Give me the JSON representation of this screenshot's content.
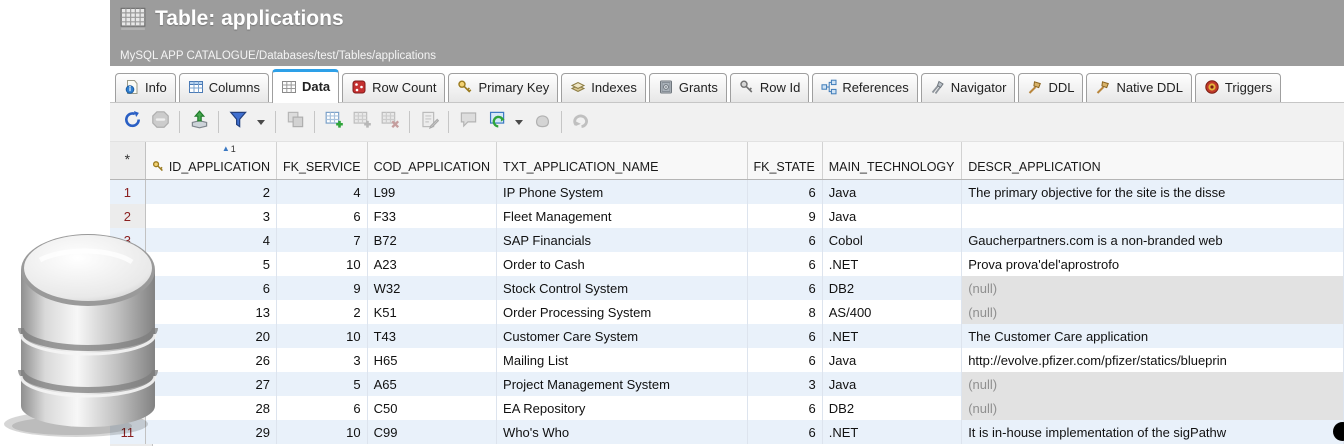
{
  "window": {
    "icon": "table-grid-icon",
    "title": "Table: applications",
    "breadcrumb": "MySQL APP CATALOGUE/Databases/test/Tables/applications"
  },
  "tabs": [
    {
      "label": "Info",
      "icon": "info-icon",
      "selected": false
    },
    {
      "label": "Columns",
      "icon": "columns-icon",
      "selected": false
    },
    {
      "label": "Data",
      "icon": "data-grid-icon",
      "selected": true
    },
    {
      "label": "Row Count",
      "icon": "row-count-icon",
      "selected": false
    },
    {
      "label": "Primary Key",
      "icon": "primary-key-icon",
      "selected": false
    },
    {
      "label": "Indexes",
      "icon": "indexes-icon",
      "selected": false
    },
    {
      "label": "Grants",
      "icon": "grants-icon",
      "selected": false
    },
    {
      "label": "Row Id",
      "icon": "row-id-icon",
      "selected": false
    },
    {
      "label": "References",
      "icon": "references-icon",
      "selected": false
    },
    {
      "label": "Navigator",
      "icon": "navigator-icon",
      "selected": false
    },
    {
      "label": "DDL",
      "icon": "ddl-icon",
      "selected": false
    },
    {
      "label": "Native DDL",
      "icon": "native-ddl-icon",
      "selected": false
    },
    {
      "label": "Triggers",
      "icon": "triggers-icon",
      "selected": false
    }
  ],
  "toolbar": [
    {
      "type": "button",
      "name": "refresh",
      "icon": "refresh-icon",
      "enabled": true
    },
    {
      "type": "button",
      "name": "stop",
      "icon": "stop-icon",
      "enabled": false
    },
    {
      "type": "divider"
    },
    {
      "type": "button",
      "name": "export",
      "icon": "export-icon",
      "enabled": true
    },
    {
      "type": "divider"
    },
    {
      "type": "button",
      "name": "filter",
      "icon": "filter-icon",
      "enabled": true
    },
    {
      "type": "caret"
    },
    {
      "type": "divider"
    },
    {
      "type": "button",
      "name": "copy",
      "icon": "copy-icon",
      "enabled": false
    },
    {
      "type": "divider"
    },
    {
      "type": "button",
      "name": "add-row",
      "icon": "add-row-icon",
      "enabled": true
    },
    {
      "type": "button",
      "name": "duplicate-row",
      "icon": "duplicate-row-icon",
      "enabled": false
    },
    {
      "type": "button",
      "name": "delete-row",
      "icon": "delete-row-icon",
      "enabled": false
    },
    {
      "type": "divider"
    },
    {
      "type": "button",
      "name": "edit",
      "icon": "edit-icon",
      "enabled": false
    },
    {
      "type": "divider"
    },
    {
      "type": "button",
      "name": "comment",
      "icon": "comment-icon",
      "enabled": false
    },
    {
      "type": "button",
      "name": "sync",
      "icon": "sync-icon",
      "enabled": true
    },
    {
      "type": "caret"
    },
    {
      "type": "button",
      "name": "apply",
      "icon": "apply-icon",
      "enabled": false
    },
    {
      "type": "divider"
    },
    {
      "type": "button",
      "name": "undo",
      "icon": "undo-icon",
      "enabled": false
    }
  ],
  "grid": {
    "corner_label": "*",
    "sort_badge": "1",
    "null_text": "(null)",
    "columns": [
      {
        "label": "ID_APPLICATION",
        "key_icon": true,
        "sorted": true,
        "align": "right"
      },
      {
        "label": "FK_SERVICE",
        "align": "right"
      },
      {
        "label": "COD_APPLICATION",
        "align": "left"
      },
      {
        "label": "TXT_APPLICATION_NAME",
        "align": "left"
      },
      {
        "label": "FK_STATE",
        "align": "right"
      },
      {
        "label": "MAIN_TECHNOLOGY",
        "align": "left"
      },
      {
        "label": "DESCR_APPLICATION",
        "align": "left"
      }
    ],
    "rows": [
      {
        "num": "1",
        "cells": [
          "2",
          "4",
          "L99",
          "IP Phone System",
          "6",
          "Java",
          "The primary objective for the site is the disse"
        ]
      },
      {
        "num": "2",
        "cells": [
          "3",
          "6",
          "F33",
          "Fleet Management",
          "9",
          "Java",
          ""
        ]
      },
      {
        "num": "3",
        "cells": [
          "4",
          "7",
          "B72",
          "SAP Financials",
          "6",
          "Cobol",
          "Gaucherpartners.com is a non-branded web"
        ]
      },
      {
        "num": "4",
        "cells": [
          "5",
          "10",
          "A23",
          "Order to Cash",
          "6",
          ".NET",
          "Prova prova'del'aprostrofo"
        ]
      },
      {
        "num": "5",
        "cells": [
          "6",
          "9",
          "W32",
          "Stock Control System",
          "6",
          "DB2",
          "(null)"
        ]
      },
      {
        "num": "6",
        "cells": [
          "13",
          "2",
          "K51",
          "Order Processing System",
          "8",
          "AS/400",
          "(null)"
        ]
      },
      {
        "num": "7",
        "cells": [
          "20",
          "10",
          "T43",
          "Customer Care System",
          "6",
          ".NET",
          "The Customer Care application"
        ]
      },
      {
        "num": "8",
        "cells": [
          "26",
          "3",
          "H65",
          "Mailing List",
          "6",
          "Java",
          "http://evolve.pfizer.com/pfizer/statics/blueprin"
        ]
      },
      {
        "num": "9",
        "cells": [
          "27",
          "5",
          "A65",
          "Project Management System",
          "3",
          "Java",
          "(null)"
        ]
      },
      {
        "num": "10",
        "cells": [
          "28",
          "6",
          "C50",
          "EA Repository",
          "6",
          "DB2",
          "(null)"
        ]
      },
      {
        "num": "11",
        "cells": [
          "29",
          "10",
          "C99",
          "Who's Who",
          "6",
          ".NET",
          "It is in-house implementation of the sigPathw"
        ]
      }
    ]
  },
  "colors": {
    "titlebar": "#9c9c9c",
    "tab_accent": "#2da0e8",
    "row_alt": "#e9f1fa",
    "null_bg": "#e2e2e2",
    "row_number": "#8b2020",
    "toolbar_bg": "#f1f1f1"
  }
}
